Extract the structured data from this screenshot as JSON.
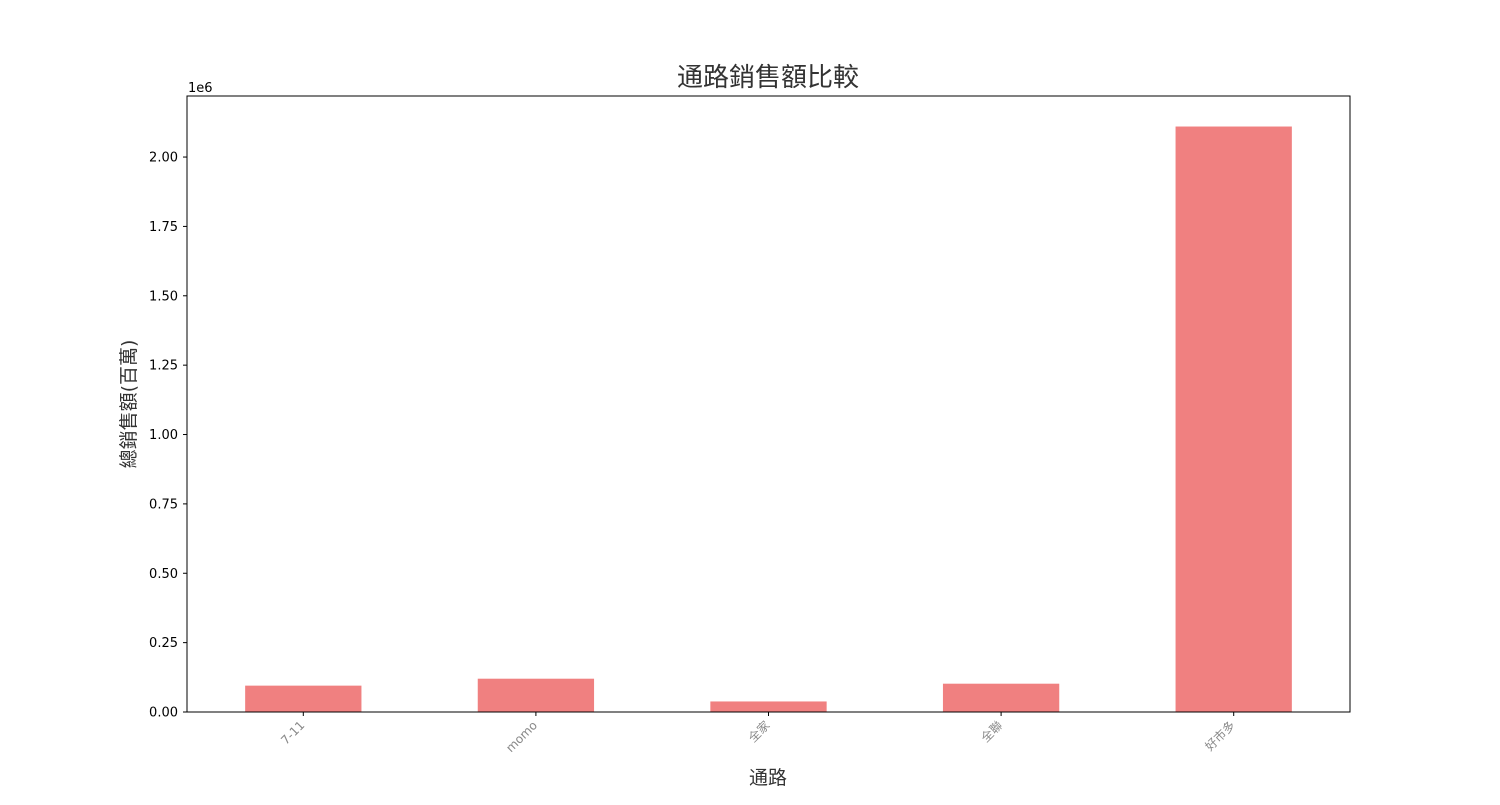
{
  "chart_data": {
    "type": "bar",
    "title": "通路銷售額比較",
    "xlabel": "通路",
    "ylabel": "總銷售額(百萬)",
    "categories": [
      "7-11",
      "momo",
      "全家",
      "全聯",
      "好市多"
    ],
    "values": [
      95000,
      120000,
      38000,
      102000,
      2110000
    ],
    "ylim": [
      0,
      2220000
    ],
    "yticks": [
      0,
      250000,
      500000,
      750000,
      1000000,
      1250000,
      1500000,
      1750000,
      2000000
    ],
    "ytick_labels": [
      "0.00",
      "0.25",
      "0.50",
      "0.75",
      "1.00",
      "1.25",
      "1.50",
      "1.75",
      "2.00"
    ],
    "y_offset_label": "1e6",
    "bar_color": "#f08080",
    "grid": false,
    "legend": "none"
  }
}
